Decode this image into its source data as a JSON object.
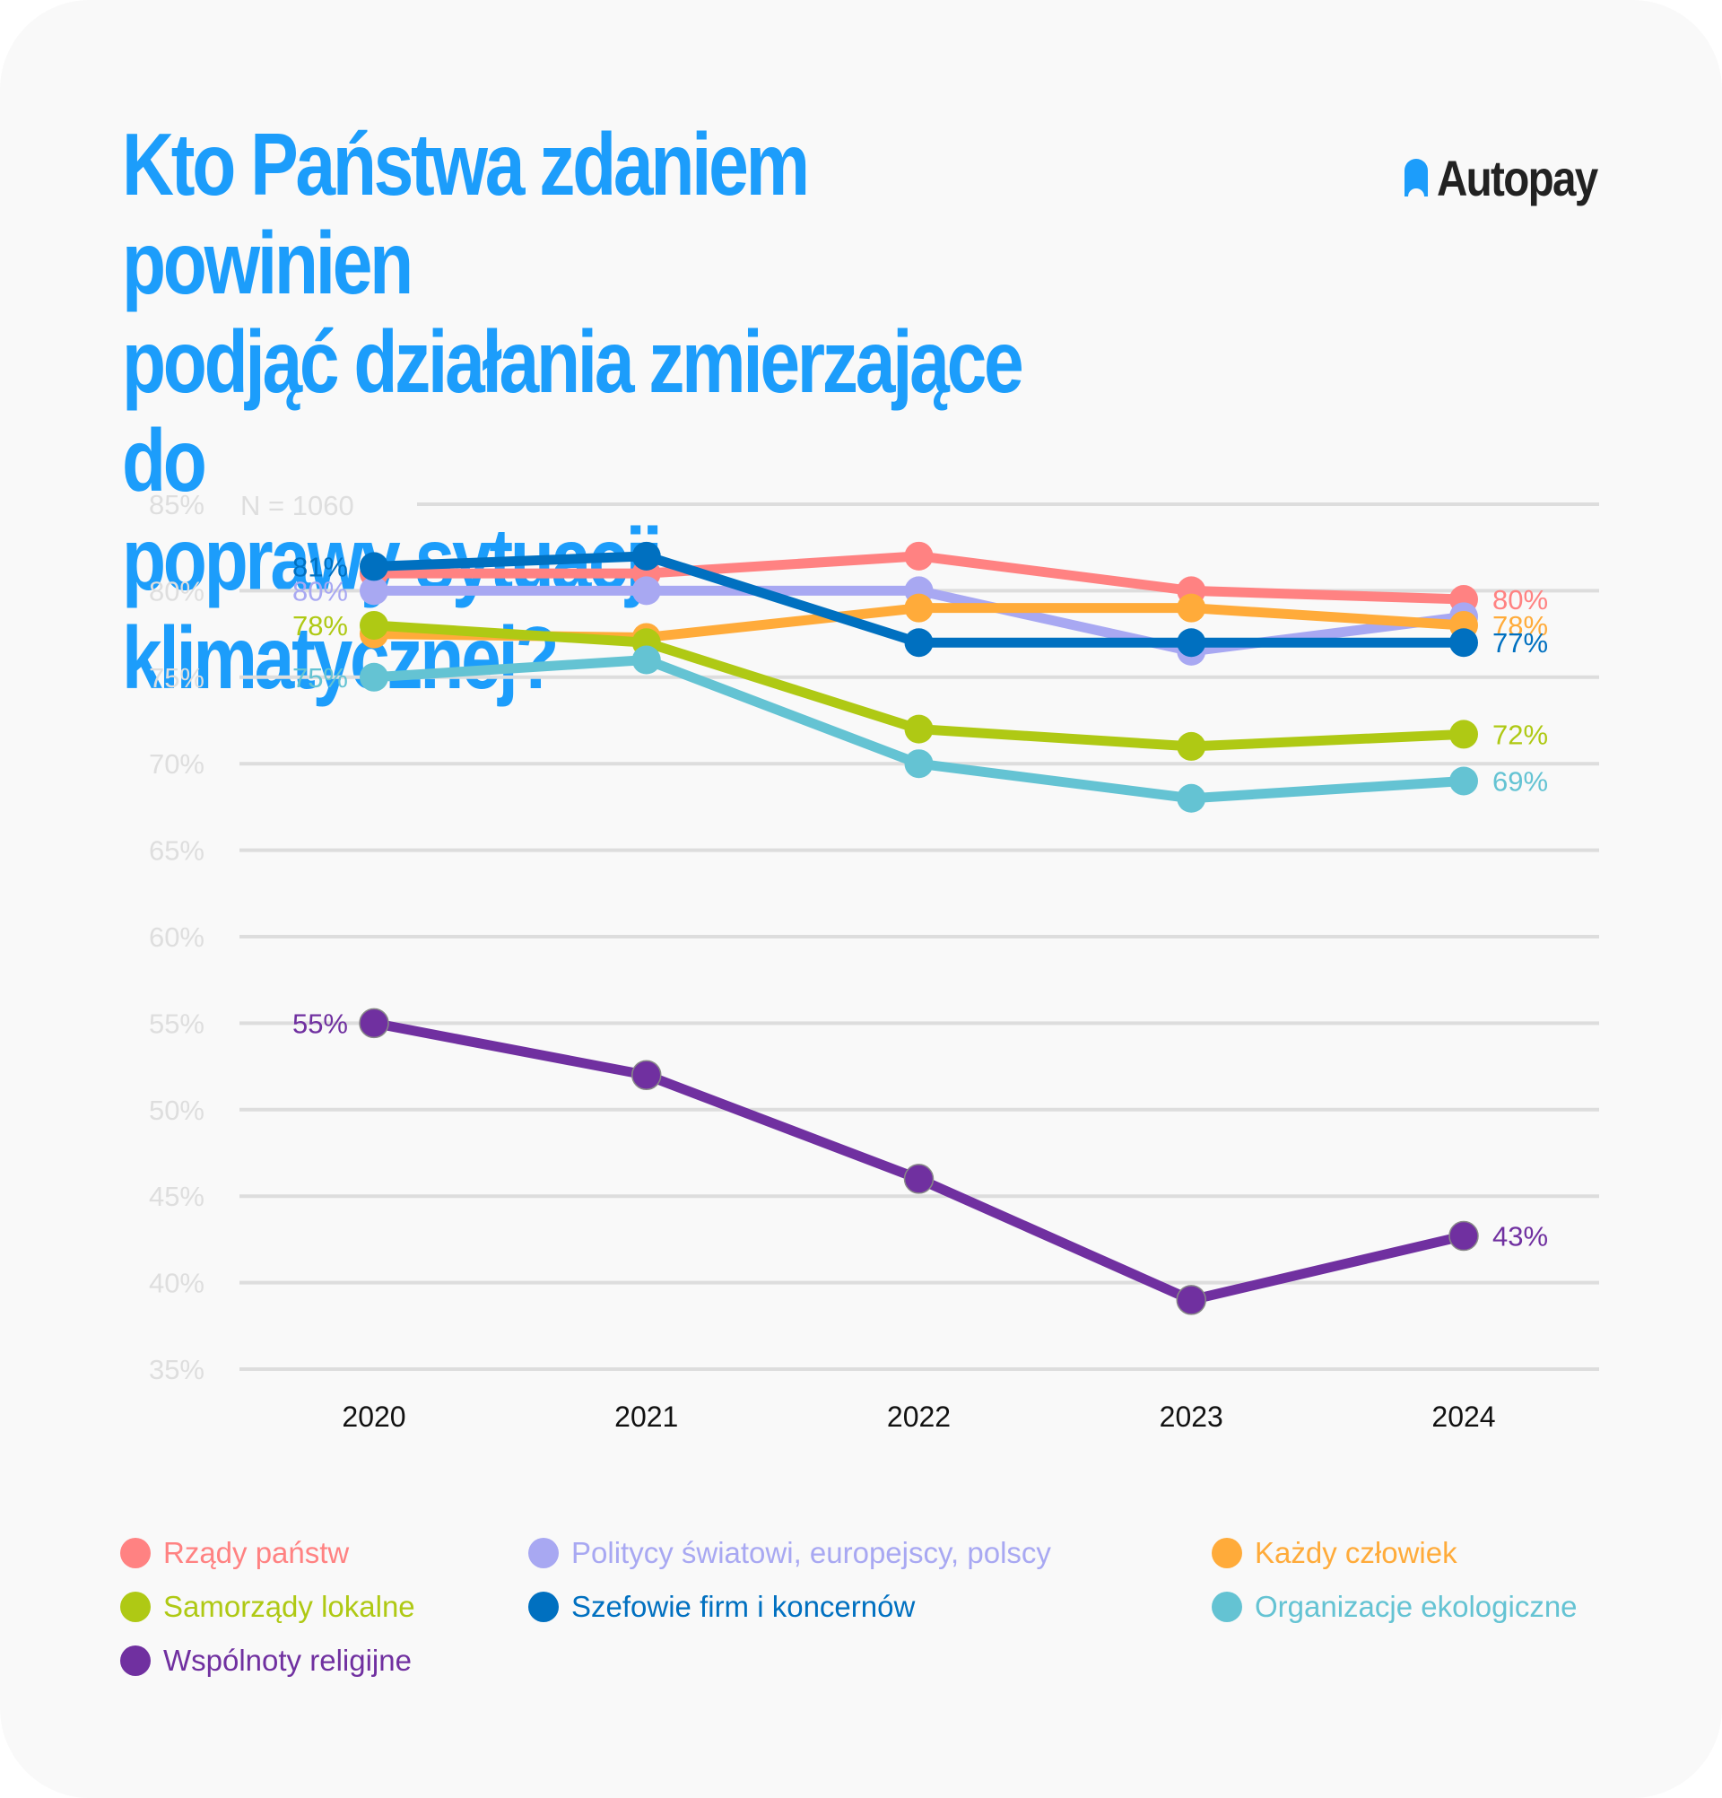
{
  "title": "Kto Państwa zdaniem powinien\npodjąć działania zmierzające do\npoprawy sytuacji klimatycznej?",
  "brand": {
    "name": "Autopay",
    "icon": "autopay-logo-icon",
    "icon_color": "#1c9dfb",
    "text_color": "#222222"
  },
  "colors": {
    "title": "#1c9dfb",
    "background": "#f9f9f9",
    "gridline": "#dddddd",
    "axis_label": "#dedede",
    "x_label": "#111111"
  },
  "chart_data": {
    "type": "line",
    "title": "Kto Państwa zdaniem powinien podjąć działania zmierzające do poprawy sytuacji klimatycznej?",
    "annotation": "N = 1060",
    "xlabel": "",
    "ylabel": "",
    "x": [
      "2020",
      "2021",
      "2022",
      "2023",
      "2024"
    ],
    "ylim": [
      35,
      85
    ],
    "yticks": [
      85,
      80,
      75,
      70,
      65,
      60,
      55,
      50,
      45,
      40,
      35
    ],
    "ytick_labels": [
      "85%",
      "80%",
      "75%",
      "70%",
      "65%",
      "60%",
      "55%",
      "50%",
      "45%",
      "40%",
      "35%"
    ],
    "grid": true,
    "legend_position": "bottom",
    "series": [
      {
        "name": "Rządy państw",
        "color": "#ff8282",
        "values": [
          81,
          81,
          82,
          80,
          79.5
        ],
        "start_label": null,
        "end_label": "80%"
      },
      {
        "name": "Politycy światowi, europejscy, polscy",
        "color": "#a8a8f2",
        "values": [
          80,
          80,
          80,
          76.5,
          78.5
        ],
        "start_label": "80%",
        "end_label": null
      },
      {
        "name": "Każdy człowiek",
        "color": "#ffab3a",
        "values": [
          77.5,
          77.3,
          79,
          79,
          78
        ],
        "start_label": null,
        "end_label": "78%"
      },
      {
        "name": "Samorządy lokalne",
        "color": "#afc914",
        "values": [
          78,
          77,
          72,
          71,
          71.7
        ],
        "start_label": "78%",
        "end_label": "72%"
      },
      {
        "name": "Szefowie firm i koncernów",
        "color": "#0070c0",
        "values": [
          81.4,
          82,
          77,
          77,
          77
        ],
        "start_label": "81%",
        "end_label": "77%"
      },
      {
        "name": "Organizacje ekologiczne",
        "color": "#64c3d3",
        "values": [
          75,
          76,
          70,
          68,
          69
        ],
        "start_label": "75%",
        "end_label": "69%"
      },
      {
        "name": "Wspólnoty religijne",
        "color": "#7030a0",
        "values": [
          55,
          52,
          46,
          39,
          42.7
        ],
        "start_label": "55%",
        "end_label": "43%"
      }
    ]
  }
}
